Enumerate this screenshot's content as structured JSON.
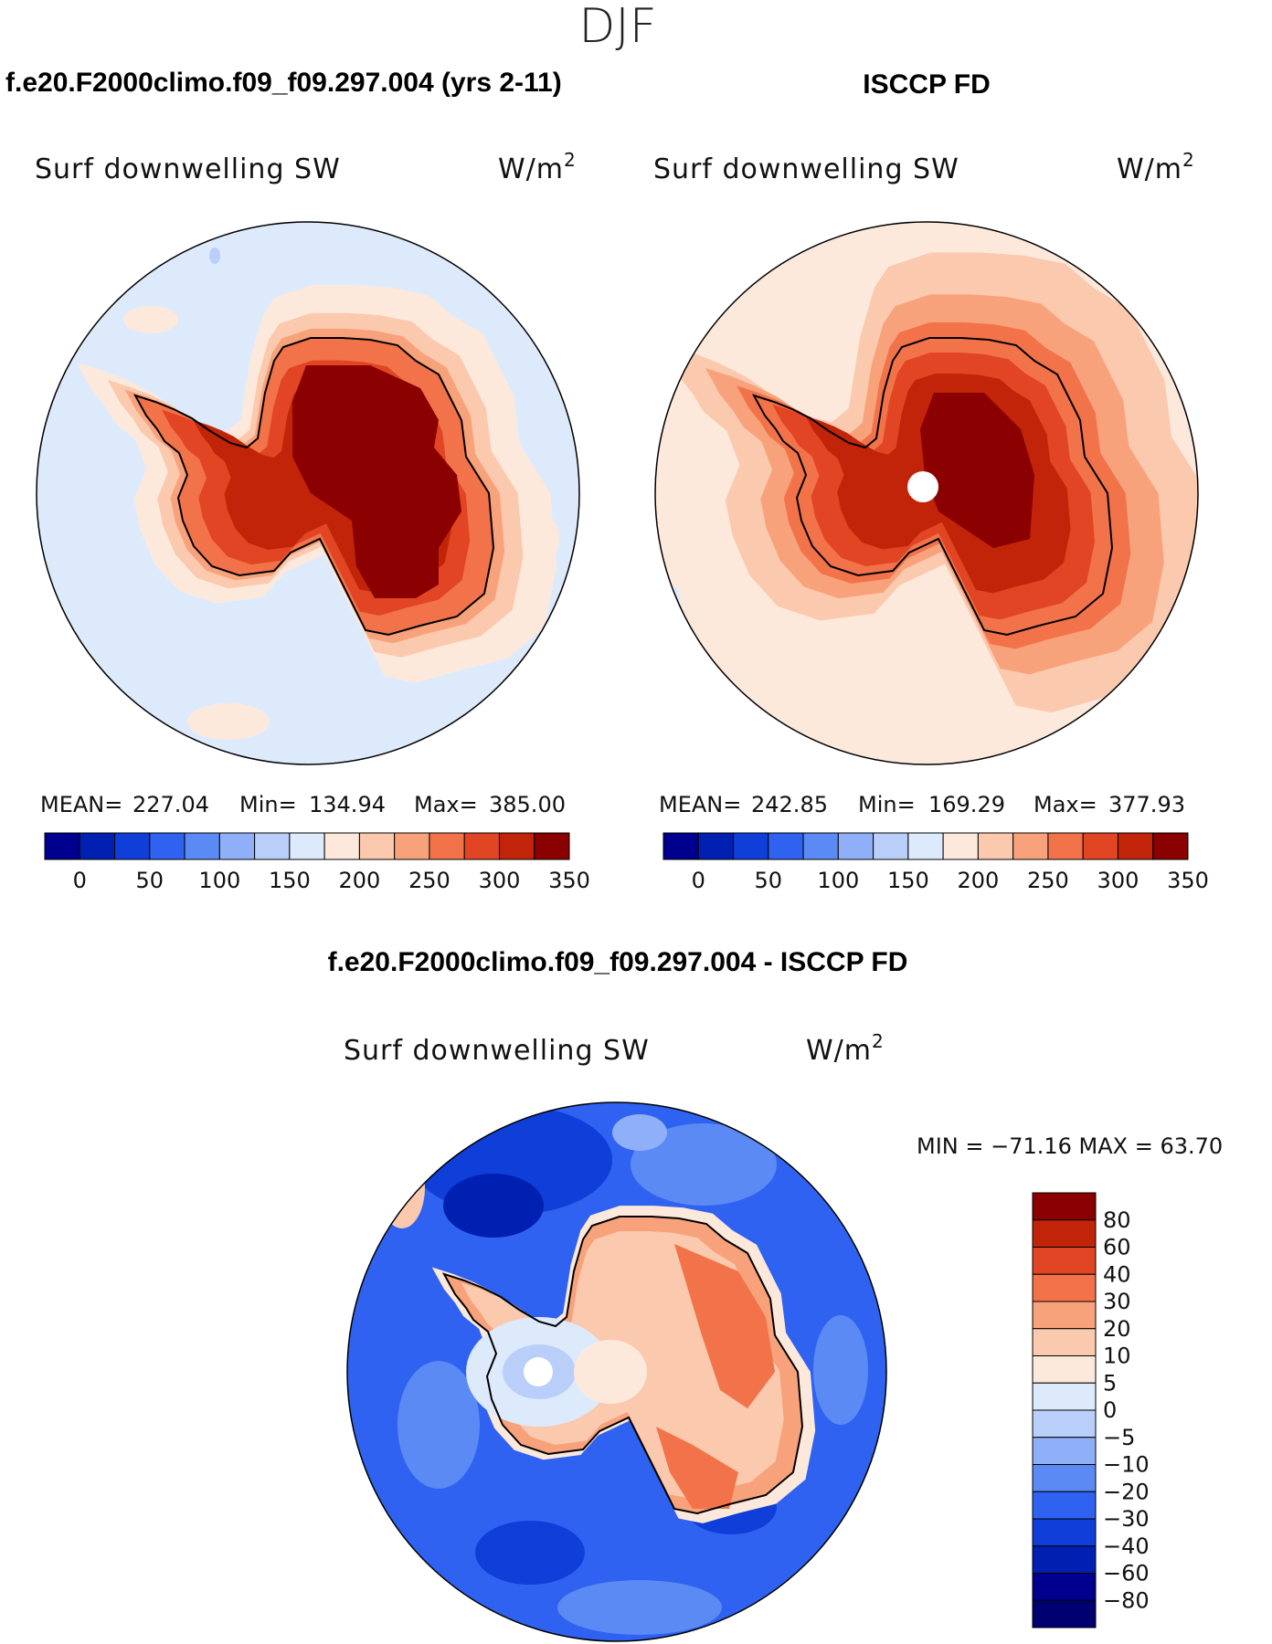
{
  "figure": {
    "season": "DJF",
    "variable": "Surf  downwelling  SW",
    "units_base": "W/m",
    "units_exp": "2",
    "panels": [
      {
        "title": "f.e20.F2000climo.f09_f09.297.004 (yrs 2-11)",
        "stats": {
          "mean_label": "MEAN=",
          "mean": "227.04",
          "min_label": "Min=",
          "min": "134.94",
          "max_label": "Max=",
          "max": "385.00"
        }
      },
      {
        "title": "ISCCP FD",
        "stats": {
          "mean_label": "MEAN=",
          "mean": "242.85",
          "min_label": "Min=",
          "min": "169.29",
          "max_label": "Max=",
          "max": "377.93"
        }
      },
      {
        "title": "f.e20.F2000climo.f09_f09.297.004 - ISCCP FD",
        "stats_text": "MIN = −71.16 MAX =   63.70"
      }
    ]
  },
  "chart_data": [
    {
      "type": "heatmap",
      "title": "f.e20.F2000climo.f09_f09.297.004 (yrs 2-11)",
      "projection": "south polar stereographic",
      "variable": "Surf downwelling SW",
      "units": "W/m2",
      "stats": {
        "mean": 227.04,
        "min": 134.94,
        "max": 385.0
      },
      "colorbar": {
        "orientation": "horizontal",
        "tick_labels": [
          "0",
          "50",
          "100",
          "150",
          "200",
          "250",
          "300",
          "350"
        ],
        "colors": [
          "#00008e",
          "#0020b2",
          "#0f3fd8",
          "#2f62f0",
          "#5b8af5",
          "#8fb0f8",
          "#b9cef9",
          "#ddeafc",
          "#fde9dc",
          "#fbc9ad",
          "#f8a27c",
          "#f2734a",
          "#e24523",
          "#c12409",
          "#8b0000"
        ]
      }
    },
    {
      "type": "heatmap",
      "title": "ISCCP FD",
      "projection": "south polar stereographic",
      "variable": "Surf downwelling SW",
      "units": "W/m2",
      "stats": {
        "mean": 242.85,
        "min": 169.29,
        "max": 377.93
      },
      "colorbar": {
        "orientation": "horizontal",
        "tick_labels": [
          "0",
          "50",
          "100",
          "150",
          "200",
          "250",
          "300",
          "350"
        ],
        "colors": [
          "#00008e",
          "#0020b2",
          "#0f3fd8",
          "#2f62f0",
          "#5b8af5",
          "#8fb0f8",
          "#b9cef9",
          "#ddeafc",
          "#fde9dc",
          "#fbc9ad",
          "#f8a27c",
          "#f2734a",
          "#e24523",
          "#c12409",
          "#8b0000"
        ]
      }
    },
    {
      "type": "heatmap",
      "title": "f.e20.F2000climo.f09_f09.297.004 - ISCCP FD",
      "projection": "south polar stereographic",
      "variable": "Surf downwelling SW",
      "units": "W/m2",
      "stats": {
        "min": -71.16,
        "max": 63.7
      },
      "colorbar": {
        "orientation": "vertical",
        "tick_labels": [
          "80",
          "60",
          "40",
          "30",
          "20",
          "10",
          "5",
          "0",
          "−5",
          "−10",
          "−20",
          "−30",
          "−40",
          "−60",
          "−80"
        ],
        "colors": [
          "#8b0000",
          "#c12409",
          "#e24523",
          "#f2734a",
          "#f8a27c",
          "#fbc9ad",
          "#fde9dc",
          "#ddeafc",
          "#b9cef9",
          "#8fb0f8",
          "#5b8af5",
          "#2f62f0",
          "#0f3fd8",
          "#0020b2",
          "#00008e",
          "#000070"
        ]
      }
    }
  ]
}
